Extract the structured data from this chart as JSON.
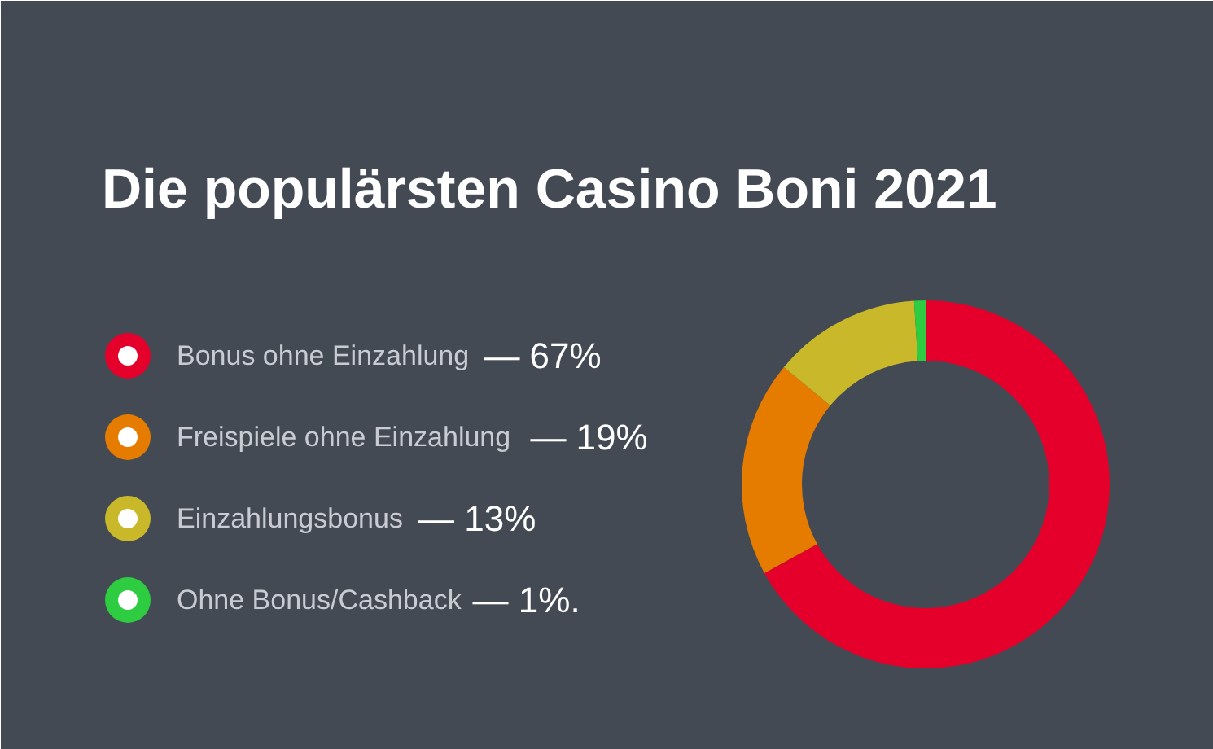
{
  "chart_data": {
    "type": "donut",
    "title": "Die populärsten Casino Boni 2021",
    "categories": [
      "Bonus ohne Einzahlung",
      "Freispiele ohne Einzahlung",
      "Einzahlungsbonus",
      "Ohne Bonus/Cashback"
    ],
    "values": [
      67,
      19,
      13,
      1
    ],
    "colors": [
      "#e4002b",
      "#e57c00",
      "#c9b82a",
      "#2ecc40"
    ],
    "value_labels": [
      "— 67%",
      "— 19%",
      "— 13%",
      "— 1%."
    ],
    "legend": "left"
  }
}
